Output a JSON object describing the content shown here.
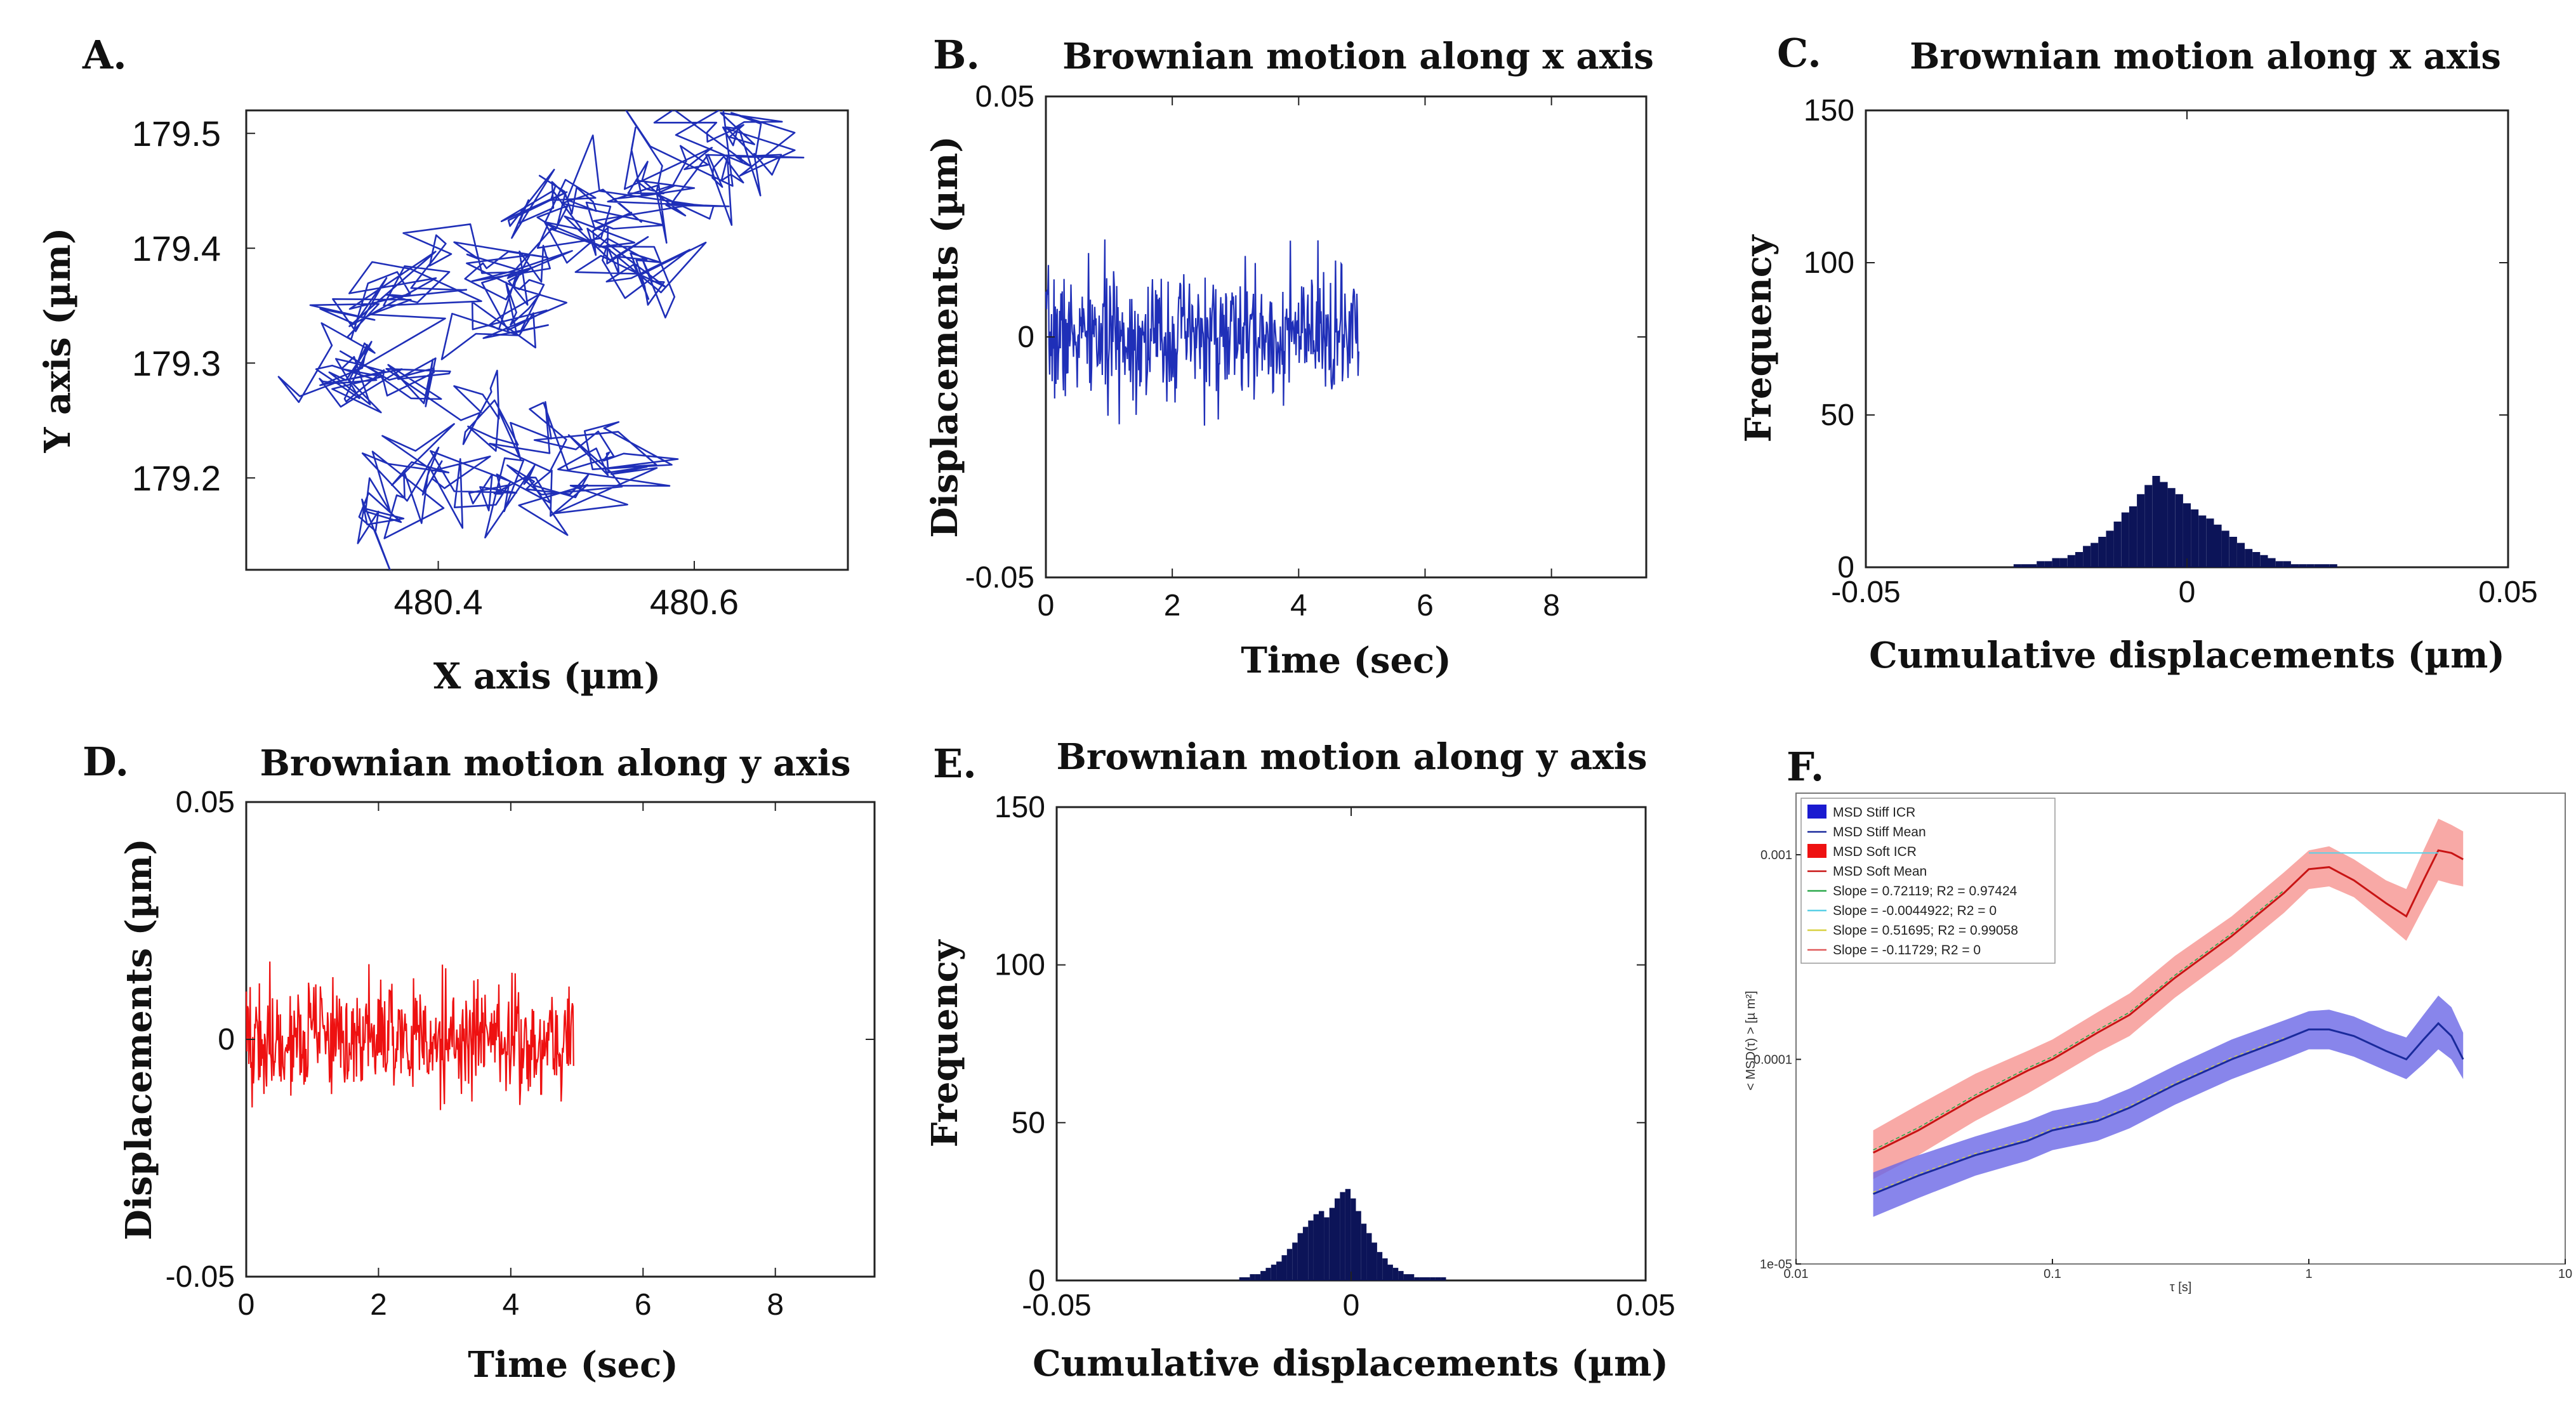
{
  "colors": {
    "blue_trace": "#1f2fb8",
    "red_trace": "#ee1111",
    "hist_fill": "#0c1458",
    "stiff_band": "#6a66e6",
    "stiff_line": "#1a2a9c",
    "soft_band": "#f79a96",
    "soft_line": "#c81414",
    "fit_green": "#2aa84a",
    "fit_cyan": "#5ad0e6",
    "fit_yellow": "#d8d040",
    "fit_pink": "#e05a5a"
  },
  "chart_data": [
    {
      "id": "A",
      "type": "line",
      "panel_label": "A.",
      "title": "",
      "xlabel": "X axis (µm)",
      "ylabel": "Y axis (µm)",
      "xlim": [
        480.25,
        480.72
      ],
      "ylim": [
        179.12,
        179.52
      ],
      "xticks": [
        480.4,
        480.6
      ],
      "xtick_labels": [
        "480.4",
        "480.6"
      ],
      "yticks": [
        179.2,
        179.3,
        179.4,
        179.5
      ],
      "ytick_labels": [
        "179.2",
        "179.3",
        "179.4",
        "179.5"
      ],
      "series": [
        {
          "color": "blue",
          "x": [
            480.32,
            480.36,
            480.38,
            480.42,
            480.45,
            480.48,
            480.52,
            480.55,
            480.5,
            480.45,
            480.4,
            480.37,
            480.34,
            480.31,
            480.33,
            480.36,
            480.4,
            480.44,
            480.47,
            480.44,
            480.47,
            480.52,
            480.55,
            480.58,
            480.52,
            480.47,
            480.5,
            480.55,
            480.6,
            480.63,
            480.66,
            480.62,
            480.58,
            480.55
          ],
          "y": [
            179.15,
            179.18,
            179.22,
            179.2,
            179.19,
            179.18,
            179.2,
            179.21,
            179.23,
            179.25,
            179.28,
            179.3,
            179.29,
            179.28,
            179.32,
            179.36,
            179.38,
            179.4,
            179.35,
            179.32,
            179.38,
            179.41,
            179.38,
            179.36,
            179.42,
            179.44,
            179.45,
            179.43,
            179.44,
            179.47,
            179.49,
            179.51,
            179.48,
            179.45
          ]
        }
      ]
    },
    {
      "id": "B",
      "type": "line",
      "panel_label": "B.",
      "title": "Brownian motion along x axis",
      "xlabel": "Time (sec)",
      "ylabel": "Displacements (µm)",
      "xlim": [
        0,
        9.5
      ],
      "ylim": [
        -0.05,
        0.05
      ],
      "xticks": [
        0,
        2,
        4,
        6,
        8
      ],
      "xtick_labels": [
        "0",
        "2",
        "4",
        "6",
        "8"
      ],
      "yticks": [
        -0.05,
        0,
        0.05
      ],
      "ytick_labels": [
        "-0.05",
        "0",
        "0.05"
      ],
      "signal": {
        "t_start": 0,
        "t_end": 4.95,
        "n_points": 500,
        "std": 0.0065,
        "min": -0.028,
        "max": 0.025
      },
      "series": [
        {
          "color": "blue"
        }
      ]
    },
    {
      "id": "C",
      "type": "bar",
      "panel_label": "C.",
      "title": "Brownian motion along x axis",
      "xlabel": "Cumulative displacements (µm)",
      "ylabel": "Frequency",
      "xlim": [
        -0.05,
        0.05
      ],
      "ylim": [
        0,
        150
      ],
      "xticks": [
        -0.05,
        0,
        0.05
      ],
      "xtick_labels": [
        "-0.05",
        "0",
        "0.05"
      ],
      "yticks": [
        0,
        50,
        100,
        150
      ],
      "ytick_labels": [
        "0",
        "50",
        "100",
        "150"
      ],
      "bin_start": -0.027,
      "bin_width": 0.0012,
      "counts": [
        1,
        1,
        1,
        2,
        2,
        3,
        3,
        4,
        5,
        7,
        8,
        10,
        12,
        15,
        18,
        20,
        24,
        27,
        30,
        28,
        26,
        24,
        21,
        19,
        17,
        16,
        14,
        12,
        10,
        8,
        6,
        5,
        4,
        3,
        2,
        2,
        1,
        1,
        1,
        1,
        1,
        1
      ]
    },
    {
      "id": "D",
      "type": "line",
      "panel_label": "D.",
      "title": "Brownian motion along y axis",
      "xlabel": "Time (sec)",
      "ylabel": "Displacements (µm)",
      "xlim": [
        0,
        9.5
      ],
      "ylim": [
        -0.05,
        0.05
      ],
      "xticks": [
        0,
        2,
        4,
        6,
        8
      ],
      "xtick_labels": [
        "0",
        "2",
        "4",
        "6",
        "8"
      ],
      "yticks": [
        -0.05,
        0,
        0.05
      ],
      "ytick_labels": [
        "-0.05",
        "0",
        "0.05"
      ],
      "signal": {
        "t_start": 0,
        "t_end": 4.95,
        "n_points": 500,
        "std": 0.006,
        "min": -0.02,
        "max": 0.019
      },
      "series": [
        {
          "color": "red"
        }
      ]
    },
    {
      "id": "E",
      "type": "bar",
      "panel_label": "E.",
      "title": "Brownian motion along y axis",
      "xlabel": "Cumulative displacements (µm)",
      "ylabel": "Frequency",
      "xlim": [
        -0.05,
        0.05
      ],
      "ylim": [
        0,
        150
      ],
      "xticks": [
        -0.05,
        0,
        0.05
      ],
      "xtick_labels": [
        "-0.05",
        "0",
        "0.05"
      ],
      "yticks": [
        0,
        50,
        100,
        150
      ],
      "ytick_labels": [
        "0",
        "50",
        "100",
        "150"
      ],
      "bin_start": -0.019,
      "bin_width": 0.0009,
      "counts": [
        1,
        1,
        2,
        2,
        3,
        4,
        5,
        6,
        8,
        10,
        12,
        15,
        17,
        19,
        21,
        22,
        20,
        23,
        26,
        28,
        29,
        26,
        22,
        18,
        15,
        12,
        9,
        7,
        5,
        4,
        3,
        2,
        2,
        1,
        1,
        1,
        1,
        1,
        1
      ]
    },
    {
      "id": "F",
      "type": "area",
      "panel_label": "F.",
      "title": "",
      "xlabel": "τ [s]",
      "ylabel": "< MSD(τ) > [µ m²]",
      "xscale": "log",
      "yscale": "log",
      "xlim": [
        0.01,
        10
      ],
      "ylim": [
        1e-05,
        0.002
      ],
      "xticks": [
        0.01,
        0.1,
        1,
        10
      ],
      "xtick_labels": [
        "0.01",
        "0.1",
        "1",
        "10"
      ],
      "yticks": [
        1e-05,
        0.0001,
        0.001
      ],
      "ytick_labels": [
        "1e-05",
        "0.0001",
        "0.001"
      ],
      "legend_position": "top-left",
      "legend": [
        "MSD Stiff ICR",
        "MSD Stiff Mean",
        "MSD Soft ICR",
        "MSD Soft Mean",
        "Slope = 0.72119; R2 = 0.97424",
        "Slope = -0.0044922; R2 = 0",
        "Slope = 0.51695; R2 = 0.99058",
        "Slope = -0.11729; R2 = 0"
      ],
      "x": [
        0.02,
        0.03,
        0.05,
        0.08,
        0.1,
        0.15,
        0.2,
        0.3,
        0.5,
        0.8,
        1.0,
        1.2,
        1.5,
        2.0,
        2.4,
        2.8,
        3.2,
        3.6,
        4.0
      ],
      "series": [
        {
          "name": "MSD Soft Mean",
          "mean": [
            3.5e-05,
            4.5e-05,
            6.5e-05,
            8.8e-05,
            0.0001,
            0.000135,
            0.000165,
            0.00025,
            0.0004,
            0.00065,
            0.00085,
            0.00087,
            0.00075,
            0.00058,
            0.0005,
            0.00075,
            0.00105,
            0.00102,
            0.00095
          ],
          "lower": [
            2.6e-05,
            3.4e-05,
            5e-05,
            6.8e-05,
            8e-05,
            0.000108,
            0.00013,
            0.0002,
            0.00032,
            0.00052,
            0.00068,
            0.0007,
            0.00062,
            0.00046,
            0.00038,
            0.00055,
            0.00075,
            0.00072,
            0.0007
          ],
          "upper": [
            4.5e-05,
            6e-05,
            8.5e-05,
            0.00011,
            0.000125,
            0.00017,
            0.00021,
            0.00032,
            0.0005,
            0.00082,
            0.00105,
            0.0011,
            0.00095,
            0.00075,
            0.00068,
            0.00105,
            0.0015,
            0.0014,
            0.0013
          ]
        },
        {
          "name": "MSD Stiff Mean",
          "mean": [
            2.2e-05,
            2.7e-05,
            3.4e-05,
            4e-05,
            4.5e-05,
            5e-05,
            5.8e-05,
            7.5e-05,
            0.0001,
            0.000125,
            0.00014,
            0.00014,
            0.00013,
            0.00011,
            0.0001,
            0.000125,
            0.00015,
            0.00013,
            0.0001
          ],
          "lower": [
            1.7e-05,
            2.1e-05,
            2.7e-05,
            3.2e-05,
            3.6e-05,
            4e-05,
            4.6e-05,
            6e-05,
            8e-05,
            0.0001,
            0.000112,
            0.000112,
            0.000103,
            8.8e-05,
            8e-05,
            9.5e-05,
            0.000112,
            0.0001,
            8e-05
          ],
          "upper": [
            2.8e-05,
            3.4e-05,
            4.2e-05,
            5e-05,
            5.6e-05,
            6.2e-05,
            7.2e-05,
            9.3e-05,
            0.000125,
            0.000155,
            0.000172,
            0.000175,
            0.000162,
            0.000138,
            0.000128,
            0.000165,
            0.000205,
            0.00018,
            0.000135
          ]
        }
      ]
    }
  ]
}
